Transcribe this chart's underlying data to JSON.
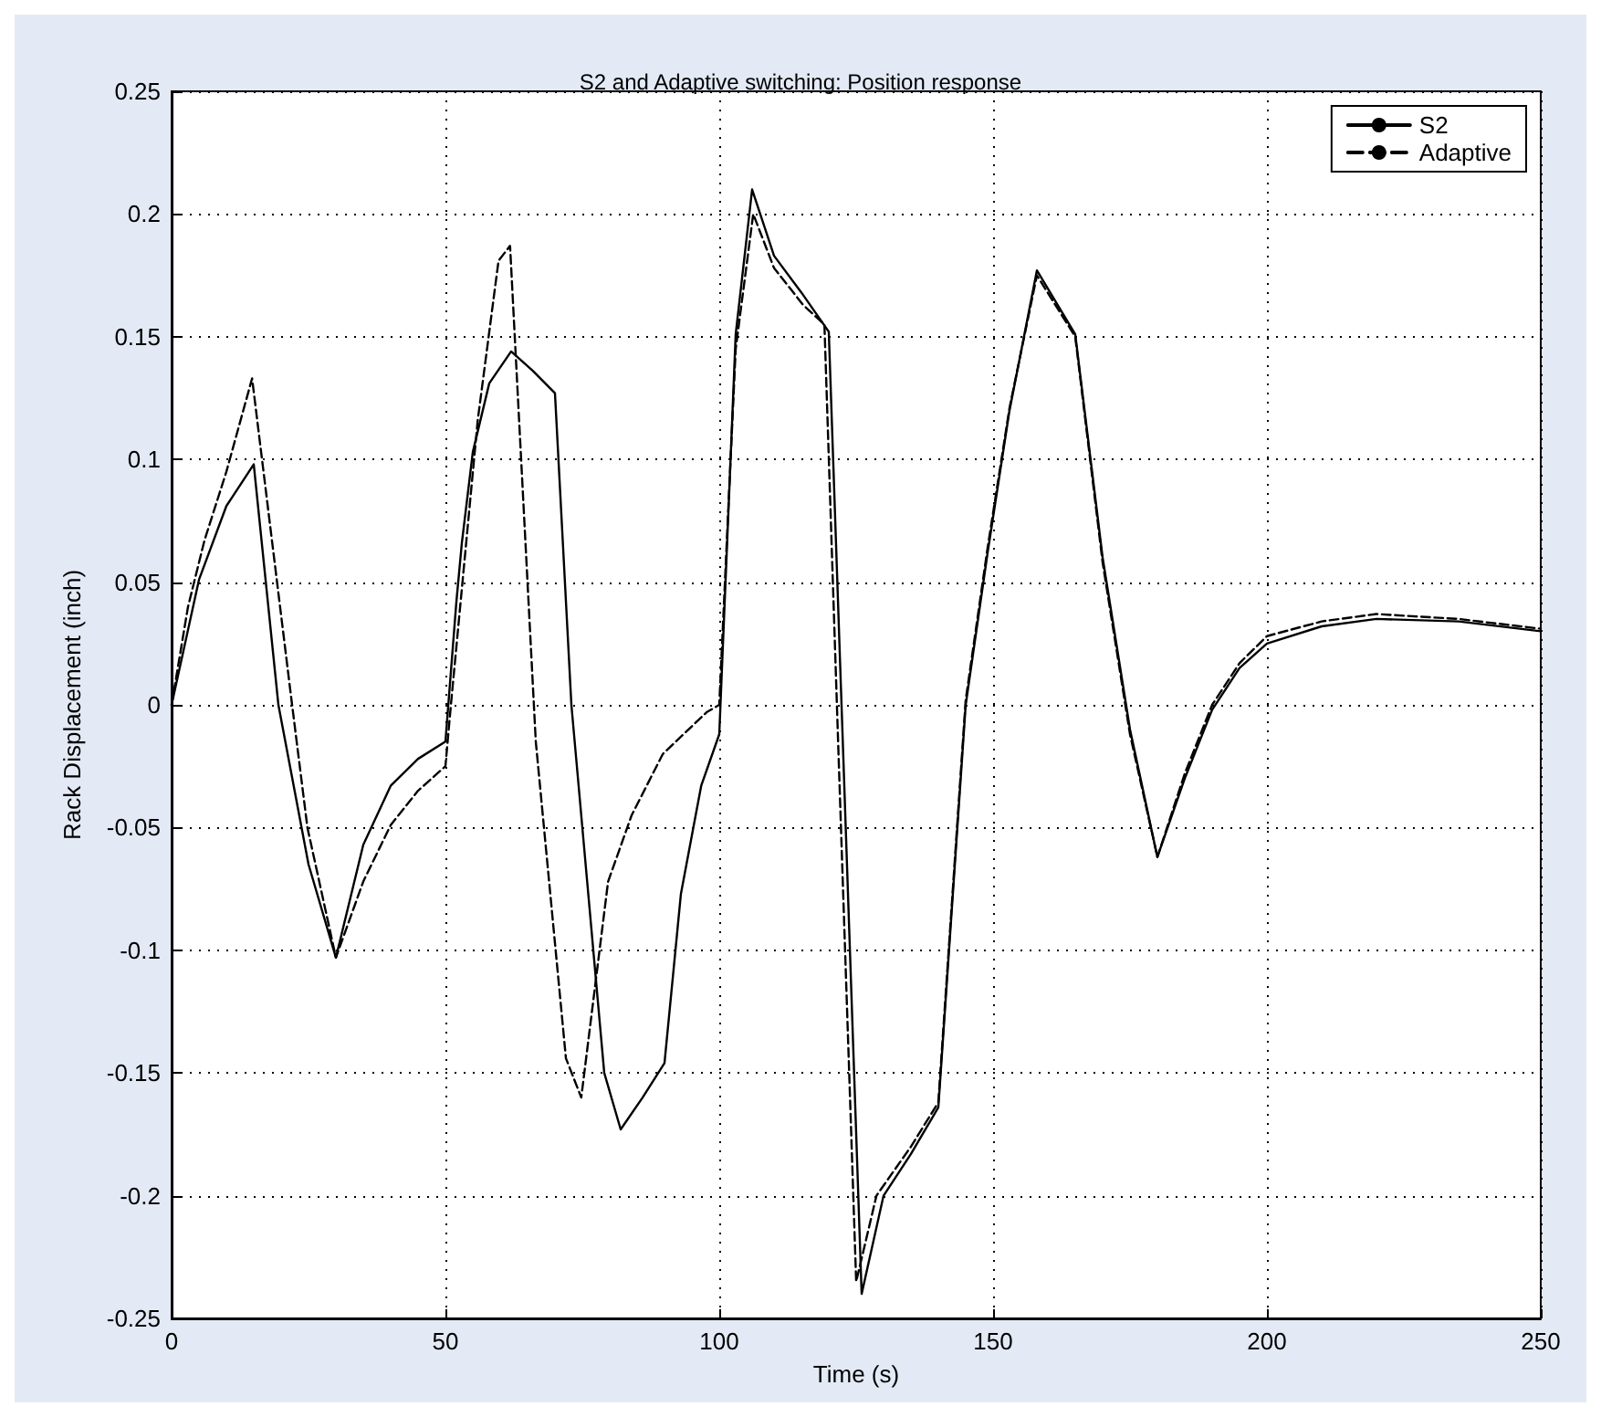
{
  "chart_data": {
    "type": "line",
    "title": "S2 and Adaptive switching: Position response",
    "xlabel": "Time (s)",
    "ylabel": "Rack Displacement (inch)",
    "xlim": [
      0,
      250
    ],
    "xticks": [
      0,
      50,
      100,
      150,
      200,
      250
    ],
    "ylim": [
      -0.25,
      0.25
    ],
    "yticks": [
      -0.25,
      -0.2,
      -0.15,
      -0.1,
      -0.05,
      0,
      0.05,
      0.1,
      0.15,
      0.2,
      0.25
    ],
    "grid": true,
    "legend": "top right",
    "marker": "none",
    "series": [
      {
        "name": "S2",
        "color": "#000000",
        "line_style": "solid",
        "x": [
          0,
          5,
          10,
          15,
          19.5,
          25,
          30,
          35,
          40,
          45,
          50,
          52,
          53,
          55,
          58,
          62,
          66,
          70,
          73,
          77,
          79,
          82,
          86,
          90,
          93,
          96.7,
          100,
          103,
          106,
          110,
          115,
          120,
          126,
          130,
          135,
          140,
          145,
          149,
          153,
          158,
          165,
          170,
          175,
          180,
          185,
          190,
          195,
          200,
          210,
          220,
          235,
          250
        ],
        "values": [
          0,
          0.051,
          0.081,
          0.098,
          0,
          -0.065,
          -0.103,
          -0.057,
          -0.033,
          -0.022,
          -0.015,
          0.042,
          0.066,
          0.103,
          0.131,
          0.144,
          0.136,
          0.127,
          0,
          -0.1,
          -0.15,
          -0.173,
          -0.16,
          -0.146,
          -0.077,
          -0.033,
          -0.012,
          0.151,
          0.21,
          0.183,
          0.168,
          0.152,
          -0.24,
          -0.2,
          -0.183,
          -0.164,
          0,
          0.062,
          0.12,
          0.177,
          0.151,
          0.06,
          -0.01,
          -0.062,
          -0.03,
          -0.002,
          0.015,
          0.025,
          0.032,
          0.035,
          0.034,
          0.03
        ]
      },
      {
        "name": "Adaptive",
        "color": "#000000",
        "line_style": "dashed",
        "x": [
          0,
          3,
          6,
          10,
          14.7,
          22,
          24.8,
          30,
          35,
          40,
          45,
          50,
          51,
          55.9,
          59.7,
          61.8,
          66.5,
          72,
          74.8,
          79.7,
          84,
          89.7,
          97.7,
          100,
          103,
          106.2,
          110,
          115.3,
          119.2,
          121.7,
          125,
          128.7,
          135,
          140,
          145,
          149,
          153,
          158,
          165,
          170,
          175,
          180,
          185,
          190,
          195,
          200,
          210,
          220,
          235,
          250
        ],
        "values": [
          0,
          0.04,
          0.067,
          0.095,
          0.133,
          0,
          -0.05,
          -0.103,
          -0.072,
          -0.049,
          -0.035,
          -0.025,
          0,
          0.116,
          0.181,
          0.187,
          -0.015,
          -0.144,
          -0.16,
          -0.072,
          -0.045,
          -0.02,
          -0.003,
          0,
          0.145,
          0.2,
          0.178,
          0.163,
          0.155,
          -0.015,
          -0.235,
          -0.2,
          -0.18,
          -0.162,
          0.002,
          0.064,
          0.121,
          0.175,
          0.15,
          0.058,
          -0.012,
          -0.062,
          -0.028,
          0,
          0.017,
          0.028,
          0.034,
          0.037,
          0.035,
          0.031
        ]
      }
    ]
  }
}
